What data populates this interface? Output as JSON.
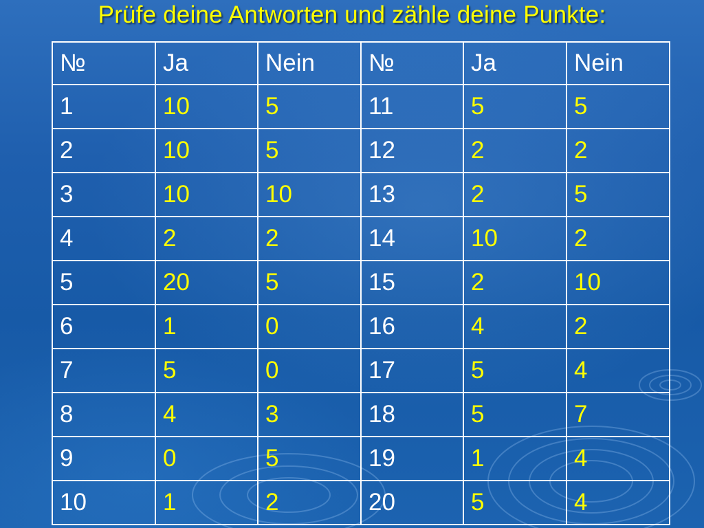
{
  "slide": {
    "title": "Prüfe deine Antworten und zähle deine Punkte:"
  },
  "table": {
    "headers": [
      "№",
      "Ja",
      "Nein",
      "№",
      "Ja",
      "Nein"
    ],
    "rows": [
      [
        "1",
        "10",
        "5",
        "11",
        "5",
        "5"
      ],
      [
        "2",
        "10",
        "5",
        "12",
        "2",
        "2"
      ],
      [
        "3",
        "10",
        "10",
        "13",
        "2",
        "5"
      ],
      [
        "4",
        "2",
        "2",
        "14",
        "10",
        "2"
      ],
      [
        "5",
        "20",
        "5",
        "15",
        "2",
        "10"
      ],
      [
        "6",
        "1",
        "0",
        "16",
        "4",
        "2"
      ],
      [
        "7",
        "5",
        "0",
        "17",
        "5",
        "4"
      ],
      [
        "8",
        "4",
        "3",
        "18",
        "5",
        "7"
      ],
      [
        "9",
        "0",
        "5",
        "19",
        "1",
        "4"
      ],
      [
        "10",
        "1",
        "2",
        "20",
        "5",
        "4"
      ]
    ]
  },
  "colors": {
    "background": "#1f5fae",
    "title_text": "#ffff00",
    "grid_lines": "#ffffff",
    "number_text": "#ffffff",
    "value_text": "#ffff00"
  }
}
